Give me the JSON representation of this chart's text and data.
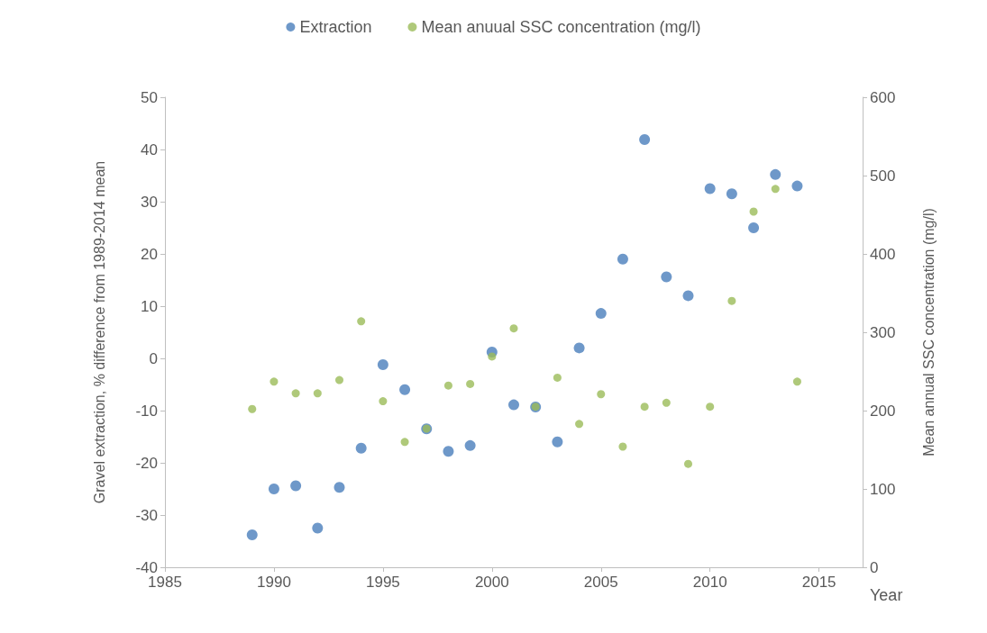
{
  "chart_data": {
    "type": "scatter",
    "xlabel": "Year",
    "ylabel": "Gravel extraction, % difference from 1989-2014 mean",
    "y2label": "Mean annual SSC concentration (mg/l)",
    "x": [
      1989,
      1990,
      1991,
      1992,
      1993,
      1994,
      1995,
      1996,
      1997,
      1998,
      1999,
      2000,
      2001,
      2002,
      2003,
      2004,
      2005,
      2006,
      2007,
      2008,
      2009,
      2010,
      2011,
      2012,
      2013,
      2014
    ],
    "series": [
      {
        "name": "Extraction",
        "color": "#4a7ebb",
        "values": [
          -33.8,
          -25,
          -24.4,
          -32.5,
          -24.7,
          -17.2,
          -1.2,
          -6,
          -13.5,
          -17.8,
          -16.7,
          1.2,
          -8.9,
          -9.3,
          -16,
          2,
          8.6,
          19,
          41.9,
          15.6,
          12,
          32.5,
          31.5,
          25,
          35.2,
          33
        ]
      },
      {
        "name": "Mean anuual SSC concentration (mg/l)",
        "color": "#9bbb59",
        "axis": "y2",
        "values": [
          202,
          237,
          222,
          222,
          239,
          314,
          212,
          160,
          177,
          232,
          234,
          269,
          305,
          205,
          242,
          183,
          221,
          154,
          205,
          210,
          132,
          205,
          340,
          454,
          483,
          237
        ]
      }
    ],
    "xlim": [
      1985,
      2017
    ],
    "xticks": [
      1985,
      1990,
      1995,
      2000,
      2005,
      2010,
      2015
    ],
    "ylim": [
      -40,
      50
    ],
    "yticks": [
      -40,
      -30,
      -20,
      -10,
      0,
      10,
      20,
      30,
      40,
      50
    ],
    "y2lim": [
      0,
      600
    ],
    "y2ticks": [
      0,
      100,
      200,
      300,
      400,
      500,
      600
    ],
    "grid": false,
    "legend": "top",
    "marker": "circle"
  }
}
